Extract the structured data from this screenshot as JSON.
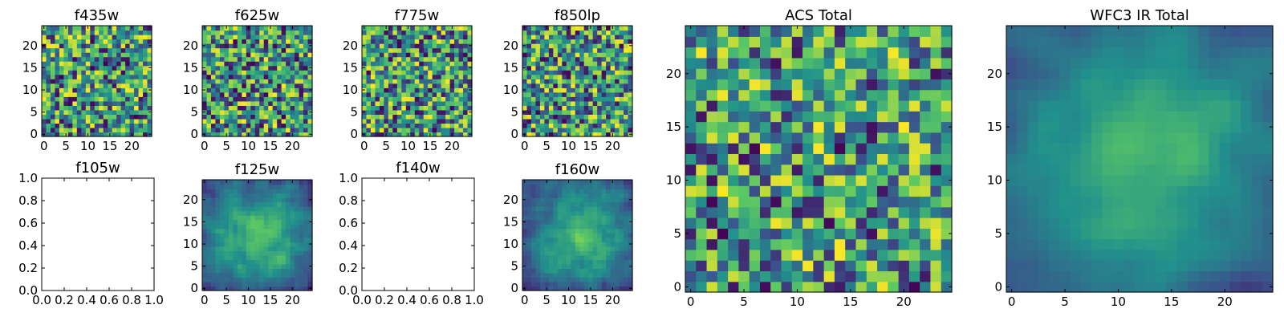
{
  "figure": {
    "colormap": "viridis",
    "colors": [
      "#440154",
      "#3b528b",
      "#21918c",
      "#5ec962",
      "#fde725"
    ]
  },
  "chart_data": [
    {
      "id": "p-f435w",
      "type": "heatmap",
      "title": "f435w",
      "grid": 24,
      "empty": false,
      "seed": 11,
      "smooth": 0,
      "bias": 0.62,
      "xticks": [
        "0",
        "5",
        "10",
        "15",
        "20"
      ],
      "yticks": [
        "0",
        "5",
        "10",
        "15",
        "20"
      ],
      "xlim": [
        -0.5,
        24.5
      ],
      "ylim": [
        -0.5,
        24.5
      ],
      "xtick_values": [
        0,
        5,
        10,
        15,
        20
      ],
      "ytick_values": [
        0,
        5,
        10,
        15,
        20
      ]
    },
    {
      "id": "p-f625w",
      "type": "heatmap",
      "title": "f625w",
      "grid": 24,
      "empty": false,
      "seed": 23,
      "smooth": 0,
      "bias": 0.62,
      "xticks": [
        "0",
        "5",
        "10",
        "15",
        "20"
      ],
      "yticks": [
        "0",
        "5",
        "10",
        "15",
        "20"
      ],
      "xlim": [
        -0.5,
        24.5
      ],
      "ylim": [
        -0.5,
        24.5
      ],
      "xtick_values": [
        0,
        5,
        10,
        15,
        20
      ],
      "ytick_values": [
        0,
        5,
        10,
        15,
        20
      ]
    },
    {
      "id": "p-f775w",
      "type": "heatmap",
      "title": "f775w",
      "grid": 24,
      "empty": false,
      "seed": 37,
      "smooth": 0,
      "bias": 0.62,
      "xticks": [
        "0",
        "5",
        "10",
        "15",
        "20"
      ],
      "yticks": [
        "0",
        "5",
        "10",
        "15",
        "20"
      ],
      "xlim": [
        -0.5,
        24.5
      ],
      "ylim": [
        -0.5,
        24.5
      ],
      "xtick_values": [
        0,
        5,
        10,
        15,
        20
      ],
      "ytick_values": [
        0,
        5,
        10,
        15,
        20
      ]
    },
    {
      "id": "p-f850lp",
      "type": "heatmap",
      "title": "f850lp",
      "grid": 24,
      "empty": false,
      "seed": 41,
      "smooth": 0,
      "bias": 0.6,
      "xticks": [
        "0",
        "5",
        "10",
        "15",
        "20"
      ],
      "yticks": [
        "0",
        "5",
        "10",
        "15",
        "20"
      ],
      "xlim": [
        -0.5,
        24.5
      ],
      "ylim": [
        -0.5,
        24.5
      ],
      "xtick_values": [
        0,
        5,
        10,
        15,
        20
      ],
      "ytick_values": [
        0,
        5,
        10,
        15,
        20
      ]
    },
    {
      "id": "p-f105w",
      "type": "heatmap",
      "title": "f105w",
      "grid": 0,
      "empty": true,
      "xticks": [
        "0.0",
        "0.2",
        "0.4",
        "0.6",
        "0.8",
        "1.0"
      ],
      "yticks": [
        "0.0",
        "0.2",
        "0.4",
        "0.6",
        "0.8",
        "1.0"
      ],
      "xlim": [
        0,
        1
      ],
      "ylim": [
        0,
        1
      ],
      "xtick_values": [
        0,
        0.2,
        0.4,
        0.6,
        0.8,
        1.0
      ],
      "ytick_values": [
        0,
        0.2,
        0.4,
        0.6,
        0.8,
        1.0
      ]
    },
    {
      "id": "p-f125w",
      "type": "heatmap",
      "title": "f125w",
      "grid": 24,
      "empty": false,
      "seed": 53,
      "smooth": 1,
      "bias": 0.55,
      "xticks": [
        "0",
        "5",
        "10",
        "15",
        "20"
      ],
      "yticks": [
        "0",
        "5",
        "10",
        "15",
        "20"
      ],
      "xlim": [
        -0.5,
        24.5
      ],
      "ylim": [
        -0.5,
        24.5
      ],
      "xtick_values": [
        0,
        5,
        10,
        15,
        20
      ],
      "ytick_values": [
        0,
        5,
        10,
        15,
        20
      ]
    },
    {
      "id": "p-f140w",
      "type": "heatmap",
      "title": "f140w",
      "grid": 0,
      "empty": true,
      "xticks": [
        "0.0",
        "0.2",
        "0.4",
        "0.6",
        "0.8",
        "1.0"
      ],
      "yticks": [
        "0.0",
        "0.2",
        "0.4",
        "0.6",
        "0.8",
        "1.0"
      ],
      "xlim": [
        0,
        1
      ],
      "ylim": [
        0,
        1
      ],
      "xtick_values": [
        0,
        0.2,
        0.4,
        0.6,
        0.8,
        1.0
      ],
      "ytick_values": [
        0,
        0.2,
        0.4,
        0.6,
        0.8,
        1.0
      ]
    },
    {
      "id": "p-f160w",
      "type": "heatmap",
      "title": "f160w",
      "grid": 24,
      "empty": false,
      "seed": 67,
      "smooth": 1,
      "bias": 0.5,
      "xticks": [
        "0",
        "5",
        "10",
        "15",
        "20"
      ],
      "yticks": [
        "0",
        "5",
        "10",
        "15",
        "20"
      ],
      "xlim": [
        -0.5,
        24.5
      ],
      "ylim": [
        -0.5,
        24.5
      ],
      "xtick_values": [
        0,
        5,
        10,
        15,
        20
      ],
      "ytick_values": [
        0,
        5,
        10,
        15,
        20
      ]
    },
    {
      "id": "p-acs-total",
      "type": "heatmap",
      "title": "ACS Total",
      "grid": 24,
      "empty": false,
      "seed": 79,
      "smooth": 0,
      "bias": 0.7,
      "xticks": [
        "0",
        "5",
        "10",
        "15",
        "20"
      ],
      "yticks": [
        "0",
        "5",
        "10",
        "15",
        "20"
      ],
      "xlim": [
        -0.5,
        24.5
      ],
      "ylim": [
        -0.5,
        24.5
      ],
      "xtick_values": [
        0,
        5,
        10,
        15,
        20
      ],
      "ytick_values": [
        0,
        5,
        10,
        15,
        20
      ]
    },
    {
      "id": "p-wfc3-total",
      "type": "heatmap",
      "title": "WFC3 IR Total",
      "grid": 24,
      "empty": false,
      "seed": 83,
      "smooth": 2,
      "bias": 0.6,
      "xticks": [
        "0",
        "5",
        "10",
        "15",
        "20"
      ],
      "yticks": [
        "0",
        "5",
        "10",
        "15",
        "20"
      ],
      "xlim": [
        -0.5,
        24.5
      ],
      "ylim": [
        -0.5,
        24.5
      ],
      "xtick_values": [
        0,
        5,
        10,
        15,
        20
      ],
      "ytick_values": [
        0,
        5,
        10,
        15,
        20
      ]
    }
  ]
}
